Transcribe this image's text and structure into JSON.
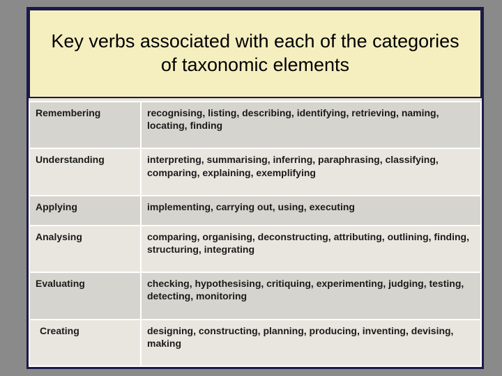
{
  "title": "Key verbs associated with each of the categories of taxonomic elements",
  "colors": {
    "slide_bg": "#e8e4d8",
    "title_bg": "#f5efc0",
    "border": "#1a1a4a",
    "row_even": "#d6d4ce",
    "row_odd": "#e8e6df",
    "cell_border": "#ffffff",
    "text": "#1a1a1a"
  },
  "fontsizes": {
    "title": 27,
    "cell": 14
  },
  "rows": [
    {
      "category": "Remembering",
      "verbs": "recognising, listing, describing, identifying, retrieving, naming, locating, finding"
    },
    {
      "category": "Understanding",
      "verbs": "interpreting, summarising, inferring, paraphrasing, classifying, comparing, explaining, exemplifying"
    },
    {
      "category": "Applying",
      "verbs": "implementing, carrying out, using, executing"
    },
    {
      "category": "Analysing",
      "verbs": "comparing, organising, deconstructing, attributing, outlining, finding, structuring, integrating"
    },
    {
      "category": "Evaluating",
      "verbs": "checking, hypothesising, critiquing, experimenting, judging, testing, detecting, monitoring"
    },
    {
      "category": "Creating",
      "verbs": "designing, constructing, planning, producing, inventing, devising, making"
    }
  ]
}
